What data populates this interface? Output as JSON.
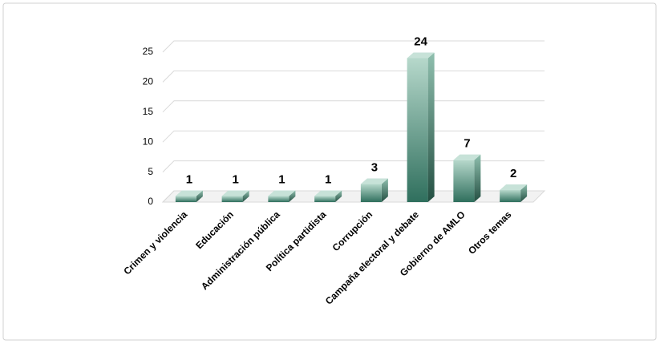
{
  "chart_data": {
    "type": "bar3d",
    "categories": [
      "Crimen y violencia",
      "Educación",
      "Administración pública",
      "Política partidista",
      "Corrupción",
      "Campaña electoral y debate",
      "Gobierno de AMLO",
      "Otros temas"
    ],
    "values": [
      1,
      1,
      1,
      1,
      3,
      24,
      7,
      2
    ],
    "color": "#4f9a82",
    "ylim": [
      0,
      25
    ],
    "yticks": [
      0,
      5,
      10,
      15,
      20,
      25
    ],
    "grid": true
  }
}
